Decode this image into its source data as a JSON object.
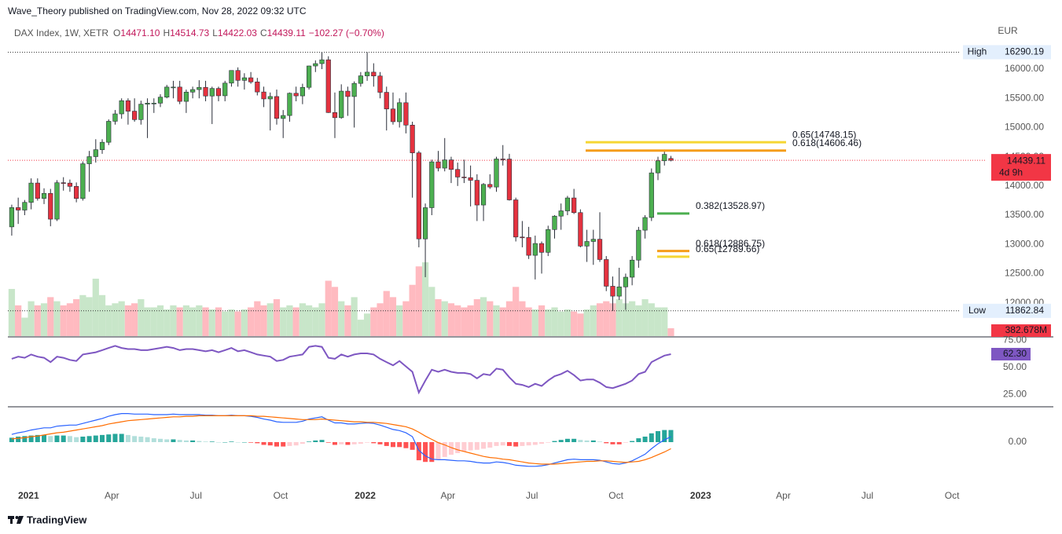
{
  "chart_data": {
    "type": "candlestick",
    "header": "Wave_Theory published on TradingView.com, Nov 28, 2022 09:32 UTC",
    "legend": {
      "name": "DAX Index, 1W, XETR",
      "items": [
        {
          "key": "O",
          "value": "14471.10"
        },
        {
          "key": "H",
          "value": "14514.73"
        },
        {
          "key": "L",
          "value": "14422.03"
        },
        {
          "key": "C",
          "value": "14439.11"
        }
      ],
      "change": "−102.27 (−0.70%)"
    },
    "currency": "EUR",
    "footer": "TradingView",
    "up_color": "#4caf50",
    "down_color": "#e5323f",
    "wick_color": "#2a2e39",
    "xlim": [
      -0.6,
      150.6
    ],
    "xticks": [
      {
        "value": 2.6,
        "label": "2021"
      },
      {
        "value": 15.5,
        "label": "Apr"
      },
      {
        "value": 28.5,
        "label": "Jul"
      },
      {
        "value": 41.6,
        "label": "Oct"
      },
      {
        "value": 54.7,
        "label": "2022"
      },
      {
        "value": 67.5,
        "label": "Apr"
      },
      {
        "value": 80.5,
        "label": "Jul"
      },
      {
        "value": 93.5,
        "label": "Oct"
      },
      {
        "value": 106.6,
        "label": "2023"
      },
      {
        "value": 119.4,
        "label": "Apr"
      },
      {
        "value": 132.4,
        "label": "Jul"
      },
      {
        "value": 145.5,
        "label": "Oct"
      }
    ],
    "ylim": [
      11430,
      16780
    ],
    "yticks": [
      {
        "value": 12000,
        "label": "12000.00"
      },
      {
        "value": 12500,
        "label": "12500.00"
      },
      {
        "value": 13000,
        "label": "13000.00"
      },
      {
        "value": 13500,
        "label": "13500.00"
      },
      {
        "value": 14000,
        "label": "14000.00"
      },
      {
        "value": 14500,
        "label": "14500.00"
      },
      {
        "value": 15000,
        "label": "15000.00"
      },
      {
        "value": 15500,
        "label": "15500.00"
      },
      {
        "value": 16000,
        "label": "16000.00"
      }
    ],
    "grid": false,
    "candles": [
      [
        13300,
        13680,
        13150,
        13630
      ],
      [
        13630,
        13800,
        13350,
        13587
      ],
      [
        13587,
        13760,
        13500,
        13719
      ],
      [
        13719,
        14130,
        13600,
        14050
      ],
      [
        14050,
        14130,
        13750,
        13787
      ],
      [
        13787,
        13960,
        13690,
        13873
      ],
      [
        13873,
        13950,
        13310,
        13432
      ],
      [
        13432,
        14100,
        13400,
        14056
      ],
      [
        14056,
        14150,
        13920,
        14049
      ],
      [
        14049,
        14110,
        13900,
        13993
      ],
      [
        13993,
        14060,
        13720,
        13786
      ],
      [
        13786,
        14420,
        13750,
        14380
      ],
      [
        14380,
        14600,
        13900,
        14502
      ],
      [
        14502,
        14800,
        14400,
        14621
      ],
      [
        14621,
        14800,
        14550,
        14748
      ],
      [
        14748,
        15140,
        14700,
        15107
      ],
      [
        15107,
        15300,
        15050,
        15234
      ],
      [
        15234,
        15500,
        15150,
        15460
      ],
      [
        15460,
        15500,
        15050,
        15280
      ],
      [
        15280,
        15500,
        15100,
        15136
      ],
      [
        15136,
        15460,
        15050,
        15400
      ],
      [
        15400,
        15500,
        14820,
        15417
      ],
      [
        15417,
        15500,
        15250,
        15418
      ],
      [
        15418,
        15570,
        15350,
        15520
      ],
      [
        15520,
        15730,
        15500,
        15693
      ],
      [
        15693,
        15800,
        15500,
        15693
      ],
      [
        15693,
        15800,
        15400,
        15448
      ],
      [
        15448,
        15650,
        15250,
        15607
      ],
      [
        15607,
        15700,
        15500,
        15650
      ],
      [
        15650,
        15810,
        15500,
        15688
      ],
      [
        15688,
        15800,
        15450,
        15540
      ],
      [
        15540,
        15700,
        15060,
        15669
      ],
      [
        15669,
        15700,
        15450,
        15544
      ],
      [
        15544,
        15800,
        15450,
        15761
      ],
      [
        15761,
        15980,
        15700,
        15977
      ],
      [
        15977,
        16030,
        15700,
        15808
      ],
      [
        15808,
        15930,
        15650,
        15852
      ],
      [
        15852,
        15950,
        15750,
        15781
      ],
      [
        15781,
        15850,
        15550,
        15609
      ],
      [
        15609,
        15700,
        15350,
        15490
      ],
      [
        15490,
        15600,
        14950,
        15531
      ],
      [
        15531,
        15650,
        15050,
        15156
      ],
      [
        15156,
        15300,
        14820,
        15206
      ],
      [
        15206,
        15600,
        15100,
        15587
      ],
      [
        15587,
        15700,
        15450,
        15542
      ],
      [
        15542,
        15750,
        15400,
        15688
      ],
      [
        15688,
        16060,
        15650,
        16054
      ],
      [
        16054,
        16150,
        15950,
        16094
      ],
      [
        16094,
        16290,
        16000,
        16160
      ],
      [
        16160,
        16220,
        15250,
        15257
      ],
      [
        15257,
        15600,
        14820,
        15169
      ],
      [
        15169,
        15740,
        15150,
        15623
      ],
      [
        15623,
        15700,
        15200,
        15531
      ],
      [
        15531,
        15790,
        15000,
        15756
      ],
      [
        15756,
        15950,
        15700,
        15885
      ],
      [
        15885,
        16290.19,
        15800,
        15948
      ],
      [
        15948,
        16100,
        15700,
        15883
      ],
      [
        15883,
        15950,
        15500,
        15603
      ],
      [
        15603,
        15700,
        14950,
        15318
      ],
      [
        15318,
        15600,
        15050,
        15100
      ],
      [
        15100,
        15500,
        15000,
        15425
      ],
      [
        15425,
        15600,
        14900,
        15042
      ],
      [
        15042,
        15100,
        13800,
        14567
      ],
      [
        14567,
        14600,
        12950,
        13094
      ],
      [
        13094,
        13700,
        12439,
        13628
      ],
      [
        13628,
        14450,
        13500,
        14413
      ],
      [
        14413,
        14600,
        14250,
        14306
      ],
      [
        14306,
        14820,
        14250,
        14446
      ],
      [
        14446,
        14500,
        14050,
        14283
      ],
      [
        14283,
        14400,
        14000,
        14153
      ],
      [
        14153,
        14450,
        14050,
        14142
      ],
      [
        14142,
        14350,
        13650,
        14097
      ],
      [
        14097,
        14200,
        13400,
        13674
      ],
      [
        13674,
        14050,
        13400,
        14027
      ],
      [
        14027,
        14200,
        13950,
        13982
      ],
      [
        13982,
        14500,
        13900,
        14462
      ],
      [
        14462,
        14700,
        14350,
        14460
      ],
      [
        14460,
        14550,
        13750,
        13762
      ],
      [
        13762,
        13800,
        13050,
        13126
      ],
      [
        13126,
        13400,
        12950,
        13118
      ],
      [
        13118,
        13300,
        12750,
        12813
      ],
      [
        12813,
        13150,
        12400,
        13015
      ],
      [
        13015,
        13050,
        12500,
        12864
      ],
      [
        12864,
        13320,
        12800,
        13254
      ],
      [
        13254,
        13500,
        13100,
        13484
      ],
      [
        13484,
        13700,
        13250,
        13574
      ],
      [
        13574,
        13830,
        13500,
        13795
      ],
      [
        13795,
        13950,
        13520,
        13544
      ],
      [
        13544,
        13600,
        12950,
        12971
      ],
      [
        12971,
        13250,
        12700,
        13050
      ],
      [
        13050,
        13250,
        12650,
        13088
      ],
      [
        13088,
        13550,
        12700,
        12741
      ],
      [
        12741,
        12800,
        12200,
        12284
      ],
      [
        12284,
        12450,
        11862.84,
        12114
      ],
      [
        12114,
        12600,
        12050,
        12273
      ],
      [
        12273,
        12500,
        11880,
        12438
      ],
      [
        12438,
        12800,
        12300,
        12731
      ],
      [
        12731,
        13300,
        12600,
        13243
      ],
      [
        13243,
        13500,
        13100,
        13460
      ],
      [
        13460,
        14300,
        13400,
        14224
      ],
      [
        14224,
        14500,
        14100,
        14431
      ],
      [
        14431,
        14600,
        14350,
        14541
      ],
      [
        14471.1,
        14514.73,
        14422.03,
        14439.11
      ]
    ],
    "last_price": {
      "value": 14439.11,
      "label": "14439.11",
      "countdown": "4d 9h",
      "color": "#f23645"
    },
    "high": {
      "label": "High",
      "value": 16290.19,
      "value_label": "16290.19"
    },
    "low": {
      "label": "Low",
      "value": 11862.84,
      "value_label": "11862.84"
    },
    "fib_levels": [
      {
        "label": "0.65(14748.15)",
        "value": 14748.15,
        "color": "#f5d633"
      },
      {
        "label": "0.618(14606.46)",
        "value": 14606.46,
        "color": "#f59d1b"
      },
      {
        "label": "0.382(13528.97)",
        "value": 13528.97,
        "color": "#4caf50"
      },
      {
        "label": "0.618(12886.75)",
        "value": 12886.75,
        "color": "#f59d1b"
      },
      {
        "label": "0.65(12789.66)",
        "value": 12789.66,
        "color": "#f5d633"
      }
    ],
    "volume": {
      "up_color": "#c8e6c9",
      "down_color": "#ffbac0",
      "ylim": [
        0,
        15240
      ],
      "last_label": "382.678M",
      "label_color": "#f23645",
      "values": [
        2300,
        1500,
        900,
        1700,
        1500,
        1600,
        1900,
        1700,
        1500,
        1600,
        1800,
        2000,
        1900,
        2800,
        2000,
        1500,
        1600,
        1700,
        1500,
        1600,
        1800,
        1400,
        1400,
        1500,
        1300,
        1500,
        1400,
        1500,
        1400,
        1500,
        1400,
        1300,
        1400,
        1200,
        1300,
        1200,
        1300,
        1400,
        1700,
        1500,
        1600,
        1800,
        1400,
        1500,
        1400,
        1600,
        1500,
        1400,
        1600,
        2700,
        2400,
        1700,
        1500,
        1900,
        800,
        1100,
        1400,
        1600,
        2200,
        1900,
        1500,
        1700,
        2500,
        3400,
        3600,
        2400,
        1800,
        1700,
        1600,
        1500,
        1400,
        1500,
        1800,
        1900,
        1700,
        1500,
        1400,
        1700,
        2400,
        1700,
        1400,
        1300,
        1500,
        1300,
        1400,
        1200,
        1300,
        1200,
        1100,
        1300,
        1500,
        1600,
        1700,
        1600,
        1800,
        1600,
        1700,
        1500,
        1800,
        1600,
        1400,
        1400,
        382.678
      ]
    },
    "rsi": {
      "color": "#7e57c2",
      "ylim": [
        13.8,
        77.5
      ],
      "last_label": "62.30",
      "yticks": [
        {
          "value": 25,
          "label": "25.00"
        },
        {
          "value": 50,
          "label": "50.00"
        },
        {
          "value": 75,
          "label": "75.00"
        }
      ],
      "values": [
        58,
        60,
        59,
        62,
        60,
        59,
        55,
        60,
        59,
        57,
        56,
        62,
        63,
        64,
        66,
        68,
        70,
        68,
        67,
        67,
        66,
        66,
        67,
        68,
        69,
        68,
        66,
        67,
        67,
        66,
        65,
        66,
        64,
        66,
        68,
        65,
        66,
        64,
        62,
        61,
        60,
        56,
        57,
        60,
        61,
        62,
        69,
        70,
        69,
        59,
        58,
        62,
        60,
        62,
        63,
        63,
        62,
        58,
        55,
        52,
        56,
        51,
        46,
        27,
        38,
        48,
        46,
        48,
        46,
        45,
        45,
        44,
        40,
        44,
        43,
        49,
        48,
        41,
        35,
        34,
        32,
        35,
        33,
        38,
        42,
        44,
        47,
        43,
        38,
        39,
        39,
        36,
        32,
        31,
        33,
        35,
        38,
        44,
        46,
        55,
        58,
        61,
        62.3
      ]
    },
    "macd": {
      "ylim": [
        -814,
        614
      ],
      "line_color": "#2962ff",
      "signal_color": "#ff6d00",
      "hist_colors": [
        "#26a69a",
        "#b2dfdb",
        "#ff5252",
        "#ffcdd2"
      ],
      "yticks": [
        {
          "value": 0,
          "label": "0.00"
        }
      ],
      "macd": [
        140,
        170,
        190,
        220,
        240,
        260,
        260,
        290,
        300,
        310,
        310,
        340,
        370,
        400,
        430,
        470,
        500,
        520,
        520,
        510,
        510,
        510,
        500,
        500,
        500,
        510,
        500,
        500,
        500,
        500,
        490,
        490,
        480,
        480,
        490,
        480,
        480,
        470,
        450,
        420,
        400,
        370,
        360,
        360,
        360,
        380,
        420,
        440,
        460,
        400,
        350,
        350,
        330,
        330,
        340,
        350,
        340,
        310,
        270,
        230,
        210,
        170,
        100,
        -150,
        -250,
        -310,
        -320,
        -320,
        -330,
        -340,
        -340,
        -350,
        -370,
        -380,
        -380,
        -360,
        -370,
        -390,
        -420,
        -430,
        -440,
        -440,
        -430,
        -410,
        -380,
        -350,
        -320,
        -310,
        -320,
        -320,
        -320,
        -330,
        -360,
        -390,
        -400,
        -380,
        -340,
        -280,
        -220,
        -120,
        -30,
        40,
        100
      ],
      "signal": [
        60,
        70,
        80,
        100,
        110,
        130,
        150,
        170,
        180,
        200,
        220,
        240,
        260,
        280,
        300,
        330,
        350,
        370,
        390,
        400,
        410,
        420,
        430,
        440,
        450,
        460,
        460,
        470,
        470,
        480,
        480,
        480,
        480,
        480,
        480,
        480,
        480,
        480,
        470,
        470,
        460,
        450,
        440,
        430,
        420,
        410,
        410,
        410,
        420,
        410,
        400,
        390,
        380,
        370,
        370,
        360,
        360,
        350,
        340,
        320,
        300,
        280,
        240,
        180,
        110,
        50,
        -10,
        -50,
        -100,
        -140,
        -170,
        -200,
        -230,
        -260,
        -280,
        -290,
        -310,
        -320,
        -340,
        -360,
        -380,
        -390,
        -400,
        -400,
        -400,
        -390,
        -380,
        -370,
        -360,
        -350,
        -350,
        -340,
        -340,
        -350,
        -360,
        -370,
        -360,
        -350,
        -320,
        -280,
        -230,
        -180,
        -120
      ],
      "histogram": [
        80,
        100,
        110,
        120,
        130,
        130,
        110,
        120,
        120,
        110,
        90,
        100,
        110,
        120,
        130,
        140,
        150,
        150,
        130,
        110,
        100,
        90,
        70,
        60,
        50,
        50,
        40,
        30,
        30,
        20,
        10,
        10,
        0,
        0,
        10,
        0,
        0,
        -10,
        -20,
        -50,
        -60,
        -80,
        -80,
        -70,
        -60,
        -30,
        10,
        30,
        40,
        -10,
        -50,
        -40,
        -50,
        -40,
        -30,
        -10,
        -20,
        -40,
        -70,
        -90,
        -90,
        -110,
        -140,
        -330,
        -360,
        -360,
        -310,
        -270,
        -230,
        -200,
        -170,
        -150,
        -140,
        -120,
        -100,
        -70,
        -60,
        -70,
        -80,
        -70,
        -60,
        -50,
        -30,
        -10,
        20,
        40,
        60,
        60,
        40,
        30,
        30,
        10,
        -20,
        -40,
        -40,
        -10,
        20,
        70,
        100,
        160,
        200,
        220,
        220
      ]
    }
  }
}
